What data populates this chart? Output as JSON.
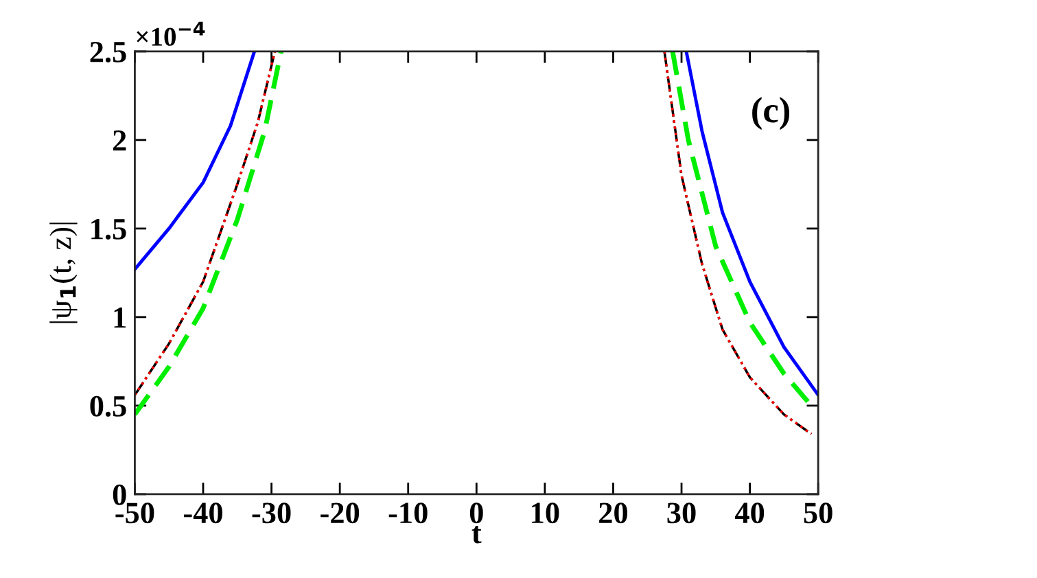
{
  "chart_data": {
    "type": "line",
    "xlabel": "t",
    "ylabel": "|ψ$_{1}$(t, z)|",
    "annotations": [
      "×10$^{−4}$",
      "(c)"
    ],
    "series": [
      {
        "color": "#0000ff",
        "line_style": "solid",
        "x": [
          -50,
          -45,
          -40,
          -36,
          -32.5,
          0,
          30.7,
          33,
          36,
          40,
          45,
          50
        ],
        "values": [
          1.27,
          1.5,
          1.76,
          2.08,
          2.5,
          null,
          2.5,
          2.05,
          1.59,
          1.2,
          0.83,
          0.56
        ]
      },
      {
        "color": "#000000",
        "line_style": "dashdot",
        "x": [
          -50,
          -45,
          -40,
          -35,
          -32,
          -29.5,
          0,
          27.5,
          30,
          33,
          36,
          40,
          45,
          49
        ],
        "values": [
          0.56,
          0.85,
          1.2,
          1.75,
          2.1,
          2.5,
          null,
          2.5,
          1.8,
          1.3,
          0.93,
          0.66,
          0.45,
          0.34
        ]
      },
      {
        "color": "#ff0000",
        "line_style": "dotted",
        "x": [
          -50,
          -45,
          -40,
          -35,
          -32,
          -29.5,
          0,
          27.5,
          30,
          33,
          36,
          40,
          45,
          49
        ],
        "values": [
          0.56,
          0.85,
          1.2,
          1.75,
          2.1,
          2.5,
          null,
          2.5,
          1.8,
          1.3,
          0.93,
          0.66,
          0.45,
          0.34
        ]
      },
      {
        "color": "#00ee00",
        "line_style": "dashed",
        "x": [
          -50,
          -45,
          -40,
          -35,
          -31,
          -28.6,
          0,
          28.7,
          31,
          35,
          40,
          45,
          49
        ],
        "values": [
          0.45,
          0.72,
          1.05,
          1.55,
          2.05,
          2.5,
          null,
          2.5,
          2.0,
          1.4,
          0.97,
          0.68,
          0.5
        ]
      }
    ],
    "xlim": [
      -50,
      50
    ],
    "xticks": [
      -50,
      -40,
      -30,
      -20,
      -10,
      0,
      10,
      20,
      30,
      40,
      50
    ],
    "ylim": [
      0,
      2.5
    ],
    "yticks": [
      0,
      0.5,
      1,
      1.5,
      2,
      2.5
    ],
    "grid": false,
    "marker": "none"
  }
}
